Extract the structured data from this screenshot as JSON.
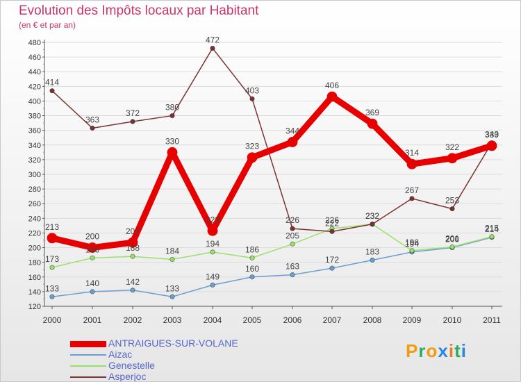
{
  "title": "Evolution des Impôts locaux par Habitant",
  "subtitle": "(en € et par an)",
  "brand": {
    "letters": [
      "P",
      "r",
      "o",
      "x",
      "i",
      "t",
      "i"
    ],
    "colors": [
      "#f39c12",
      "#27ae60",
      "#f39c12",
      "#2e86de",
      "#e67e22",
      "#27ae60",
      "#2e86de"
    ]
  },
  "chart_data": {
    "type": "line",
    "title": "Evolution des Impôts locaux par Habitant",
    "subtitle": "(en € et par an)",
    "x": [
      "2000",
      "2001",
      "2002",
      "2003",
      "2004",
      "2005",
      "2006",
      "2007",
      "2008",
      "2009",
      "2010",
      "2011"
    ],
    "ylim": [
      120,
      480
    ],
    "yticks": [
      120,
      140,
      160,
      180,
      200,
      220,
      240,
      260,
      280,
      300,
      320,
      340,
      360,
      380,
      400,
      420,
      440,
      460,
      480
    ],
    "grid": "horizontal",
    "legend_position": "bottom-left",
    "series": [
      {
        "name": "ANTRAIGUES-SUR-VOLANE",
        "color": "#e60000",
        "highlight": true,
        "values": [
          213,
          200,
          207,
          330,
          223,
          323,
          344,
          406,
          369,
          314,
          322,
          339
        ]
      },
      {
        "name": "Aizac",
        "color": "#6a9fd0",
        "highlight": false,
        "values": [
          133,
          140,
          142,
          133,
          149,
          160,
          163,
          172,
          183,
          194,
          200,
          214
        ]
      },
      {
        "name": "Genestelle",
        "color": "#99e06b",
        "highlight": false,
        "values": [
          173,
          186,
          188,
          184,
          194,
          186,
          205,
          226,
          232,
          196,
          201,
          215
        ]
      },
      {
        "name": "Asperjoc",
        "color": "#7b3232",
        "highlight": false,
        "values": [
          414,
          363,
          372,
          380,
          472,
          403,
          226,
          222,
          232,
          267,
          253,
          343
        ]
      }
    ]
  }
}
